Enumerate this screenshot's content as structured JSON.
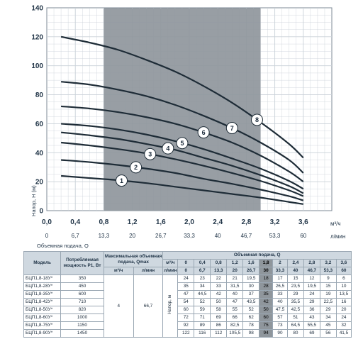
{
  "chart_data": {
    "type": "line",
    "ylabel": "Напор, Н (м)",
    "xlabel": "Объемная подача, Q",
    "xunit_top": "м³/ч",
    "xunit_bottom": "л/мин",
    "ylim": [
      0,
      140
    ],
    "yticks": [
      0,
      20,
      40,
      60,
      80,
      100,
      120,
      140
    ],
    "xlim": [
      0,
      4.0
    ],
    "xticks_top": [
      "0,0",
      "0,4",
      "0,8",
      "1,2",
      "1,6",
      "2,0",
      "2,4",
      "2,8",
      "3,2",
      "3,6"
    ],
    "xticks_top_values": [
      0,
      0.4,
      0.8,
      1.2,
      1.6,
      2.0,
      2.4,
      2.8,
      3.2,
      3.6
    ],
    "xticks_bottom": [
      "0",
      "6,7",
      "13,3",
      "20",
      "26,7",
      "33,3",
      "40",
      "46,7",
      "53,3",
      "60"
    ],
    "grid": true,
    "shaded_region": [
      0.8,
      3.0
    ],
    "series": [
      {
        "name": "1",
        "x": [
          0.2,
          0.6,
          1.0,
          1.4,
          1.8,
          2.2,
          2.6,
          3.0,
          3.4,
          3.6
        ],
        "y": [
          24,
          22.5,
          21,
          19,
          16.5,
          14,
          11.5,
          9,
          6,
          4.5
        ],
        "label_x": 1.05
      },
      {
        "name": "2",
        "x": [
          0.2,
          0.6,
          1.0,
          1.4,
          1.8,
          2.2,
          2.6,
          3.0,
          3.4,
          3.6
        ],
        "y": [
          35,
          33.5,
          31.5,
          29,
          26,
          22,
          18.5,
          14.5,
          10,
          7
        ],
        "label_x": 1.25
      },
      {
        "name": "3",
        "x": [
          0.2,
          0.6,
          1.0,
          1.4,
          1.8,
          2.2,
          2.6,
          3.0,
          3.4,
          3.6
        ],
        "y": [
          47,
          45,
          42.5,
          39.5,
          35.5,
          31,
          26,
          20.5,
          14,
          10
        ],
        "label_x": 1.45
      },
      {
        "name": "4",
        "x": [
          0.2,
          0.6,
          1.0,
          1.4,
          1.8,
          2.2,
          2.6,
          3.0,
          3.4,
          3.6
        ],
        "y": [
          54,
          52,
          49.5,
          46,
          42,
          36.5,
          31,
          24.5,
          17,
          12
        ],
        "label_x": 1.7
      },
      {
        "name": "5",
        "x": [
          0.2,
          0.6,
          1.0,
          1.4,
          1.8,
          2.2,
          2.6,
          3.0,
          3.4,
          3.6
        ],
        "y": [
          60,
          58.5,
          56,
          52.5,
          48,
          42.5,
          36,
          29,
          20.5,
          15
        ],
        "label_x": 1.9
      },
      {
        "name": "6",
        "x": [
          0.2,
          0.6,
          1.0,
          1.4,
          1.8,
          2.2,
          2.6,
          3.0,
          3.4,
          3.6
        ],
        "y": [
          72,
          70.5,
          68,
          64.5,
          60,
          54,
          47,
          38,
          27,
          20
        ],
        "label_x": 2.2
      },
      {
        "name": "7",
        "x": [
          0.2,
          0.6,
          1.0,
          1.4,
          1.8,
          2.2,
          2.6,
          3.0,
          3.4,
          3.6
        ],
        "y": [
          89,
          87,
          83.5,
          79,
          73,
          65.5,
          57,
          47,
          35,
          26
        ],
        "label_x": 2.6
      },
      {
        "name": "8",
        "x": [
          0.2,
          0.6,
          1.0,
          1.4,
          1.8,
          2.2,
          2.6,
          3.0,
          3.4,
          3.6
        ],
        "y": [
          120,
          116,
          111,
          104,
          96,
          86,
          74.5,
          61,
          46,
          36.5
        ],
        "label_x": 2.95
      }
    ]
  },
  "table": {
    "h_model": "Модель",
    "h_power": "Потребляемая мощность P1, Вт",
    "h_qmax": "Максимальная объемная подача, Qmax",
    "h_qmax_m3": "м³/ч",
    "h_qmax_lmin": "л/мин",
    "h_flow": "Объемная подача, Q",
    "h_m3": "м³/ч",
    "h_lmin": "л/мин",
    "h_head": "Напор, м",
    "m3_cols": [
      "0",
      "0,4",
      "0,8",
      "1,2",
      "1,6",
      "1,8",
      "2",
      "2,4",
      "2,8",
      "3,2",
      "3,6"
    ],
    "lmin_cols": [
      "0",
      "6,7",
      "13,3",
      "20",
      "26,7",
      "30",
      "33,3",
      "40",
      "46,7",
      "53,3",
      "60"
    ],
    "qmax_m3": "4",
    "qmax_lmin": "66,7",
    "rows": [
      {
        "model": "БЦП1,8-18У*",
        "power": "350",
        "values": [
          "24",
          "23",
          "22",
          "21",
          "19,5",
          "18",
          "17",
          "15",
          "12",
          "9",
          "6"
        ]
      },
      {
        "model": "БЦП1,8-28У*",
        "power": "450",
        "values": [
          "35",
          "34",
          "33",
          "31,5",
          "30",
          "28",
          "26,5",
          "23,5",
          "19,5",
          "15",
          "10"
        ]
      },
      {
        "model": "БЦП1,8-35У*",
        "power": "600",
        "values": [
          "47",
          "44,5",
          "42",
          "40",
          "37",
          "35",
          "33",
          "29",
          "24",
          "19",
          "13,5"
        ]
      },
      {
        "model": "БЦП1,8-42У*",
        "power": "710",
        "values": [
          "54",
          "52",
          "50",
          "47",
          "43,5",
          "42",
          "40",
          "35,5",
          "29",
          "22,5",
          "16"
        ]
      },
      {
        "model": "БЦП1,8-50У*",
        "power": "820",
        "values": [
          "60",
          "59",
          "58",
          "55",
          "52",
          "50",
          "47,5",
          "42,5",
          "36",
          "29",
          "20"
        ]
      },
      {
        "model": "БЦП1,8-60У*",
        "power": "1000",
        "values": [
          "72",
          "71",
          "69",
          "66",
          "62",
          "60",
          "57",
          "51",
          "43",
          "34",
          "24"
        ]
      },
      {
        "model": "БЦП1,8-75У*",
        "power": "1150",
        "values": [
          "92",
          "89",
          "86",
          "82,5",
          "78",
          "75",
          "73",
          "64,5",
          "55,5",
          "45",
          "32"
        ]
      },
      {
        "model": "БЦП1,8-90У*",
        "power": "1450",
        "values": [
          "122",
          "116",
          "112",
          "105,5",
          "98",
          "94",
          "90",
          "80",
          "69",
          "56",
          "41,5"
        ]
      }
    ]
  },
  "colors": {
    "curve": "#1e2c37",
    "shade": "#8f969c",
    "grid": "#c9d1d8",
    "header_bg": "#cfd8e0"
  }
}
